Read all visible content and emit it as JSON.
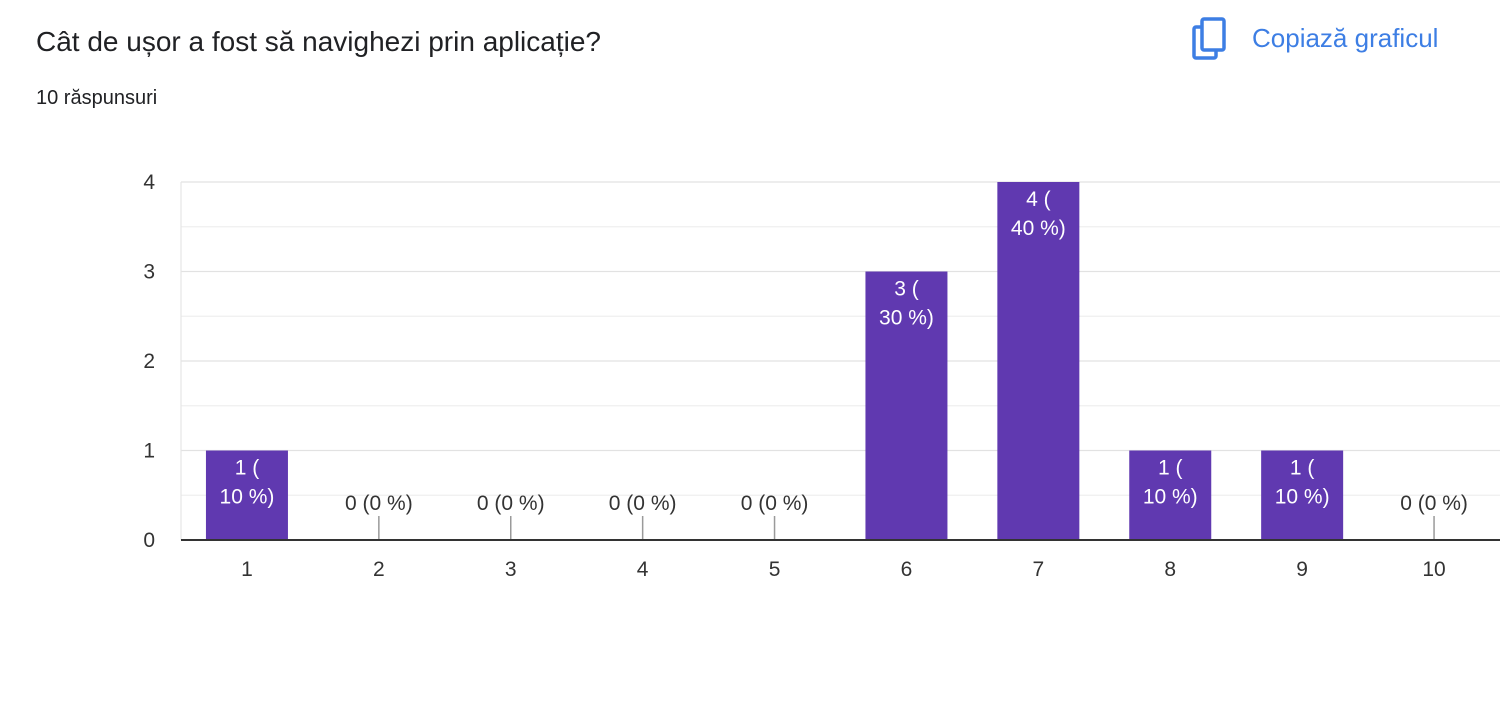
{
  "question": {
    "title": "Cât de ușor a fost să navighezi prin aplicație?",
    "response_count": "10 răspunsuri"
  },
  "toolbar": {
    "copy_label": "Copiază graficul",
    "copy_icon": "copy-icon"
  },
  "colors": {
    "bar": "#6039b0",
    "accent": "#3d7ee4",
    "grid": "#e6e6e6",
    "axis": "#333333",
    "text": "#202124",
    "bar_label": "#ffffff"
  },
  "chart_data": {
    "type": "bar",
    "categories": [
      "1",
      "2",
      "3",
      "4",
      "5",
      "6",
      "7",
      "8",
      "9",
      "10"
    ],
    "values": [
      1,
      0,
      0,
      0,
      0,
      3,
      4,
      1,
      1,
      0
    ],
    "data_labels": [
      [
        "1 (",
        "10 %)"
      ],
      [
        "0 (0 %)"
      ],
      [
        "0 (0 %)"
      ],
      [
        "0 (0 %)"
      ],
      [
        "0 (0 %)"
      ],
      [
        "3 (",
        "30 %)"
      ],
      [
        "4 (",
        "40 %)"
      ],
      [
        "1 (",
        "10 %)"
      ],
      [
        "1 (",
        "10 %)"
      ],
      [
        "0 (0 %)"
      ]
    ],
    "y_ticks": [
      "0",
      "1",
      "2",
      "3",
      "4"
    ],
    "ylim": [
      0,
      4
    ],
    "title": "",
    "xlabel": "",
    "ylabel": "",
    "grid": true,
    "legend": "none"
  }
}
